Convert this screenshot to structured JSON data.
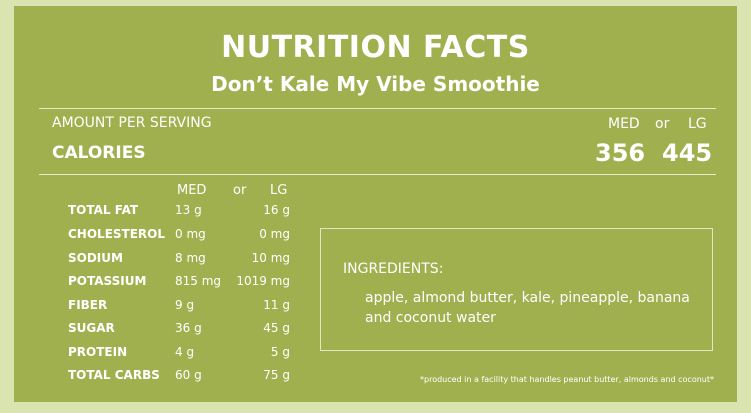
{
  "header": {
    "title": "NUTRITION FACTS",
    "subtitle": "Don’t Kale My Vibe Smoothie"
  },
  "serving": {
    "amount_label": "AMOUNT PER SERVING",
    "calories_label": "CALORIES",
    "size_med": "MED",
    "size_or": "or",
    "size_lg": "LG",
    "calories_med": "356",
    "calories_lg": "445"
  },
  "nutrients": {
    "col_med": "MED",
    "col_or": "or",
    "col_lg": "LG",
    "rows": [
      {
        "label": "TOTAL FAT",
        "med": "13 g",
        "lg": "16 g"
      },
      {
        "label": "CHOLESTEROL",
        "med": "0 mg",
        "lg": "0 mg"
      },
      {
        "label": "SODIUM",
        "med": "8 mg",
        "lg": "10 mg"
      },
      {
        "label": "POTASSIUM",
        "med": "815 mg",
        "lg": "1019 mg"
      },
      {
        "label": "FIBER",
        "med": "9 g",
        "lg": "11 g"
      },
      {
        "label": "SUGAR",
        "med": "36 g",
        "lg": "45 g"
      },
      {
        "label": "PROTEIN",
        "med": "4 g",
        "lg": "5 g"
      },
      {
        "label": "TOTAL CARBS",
        "med": "60 g",
        "lg": "75 g"
      }
    ]
  },
  "ingredients": {
    "title": "INGREDIENTS:",
    "text": "apple, almond butter, kale, pineapple, banana and coconut water"
  },
  "footnote": "*produced in a facility that handles peanut butter, almonds and coconut*",
  "colors": {
    "panel": "#a0b04f",
    "background": "#d9e4b0",
    "text": "#ffffff"
  }
}
